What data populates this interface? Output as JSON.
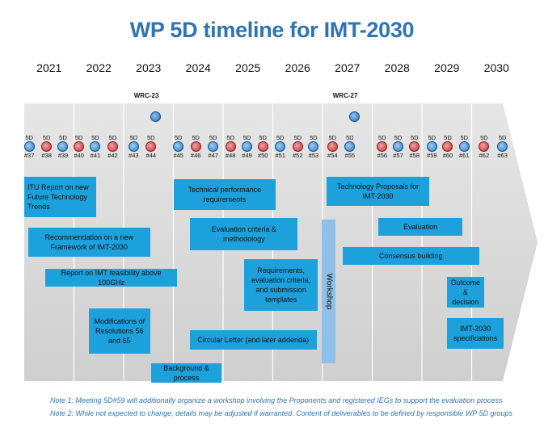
{
  "title": "WP 5D timeline for IMT-2030",
  "years": [
    "2021",
    "2022",
    "2023",
    "2024",
    "2025",
    "2026",
    "2027",
    "2028",
    "2029",
    "2030"
  ],
  "wrc": [
    {
      "label": "WRC-23",
      "year_index": 2
    },
    {
      "label": "WRC-27",
      "year_index": 6
    }
  ],
  "meetings": [
    {
      "label": "5D\n#37",
      "pos": 0.1
    },
    {
      "label": "5D\n#38",
      "pos": 0.45
    },
    {
      "label": "5D\n#39",
      "pos": 0.78
    },
    {
      "label": "5D\n#40",
      "pos": 1.1
    },
    {
      "label": "5D\n#41",
      "pos": 1.43
    },
    {
      "label": "5D\n#42",
      "pos": 1.78
    },
    {
      "label": "5D\n#43",
      "pos": 2.2
    },
    {
      "label": "5D\n#44",
      "pos": 2.55
    },
    {
      "label": "5D\n#45",
      "pos": 3.1
    },
    {
      "label": "5D\n#46",
      "pos": 3.45
    },
    {
      "label": "5D\n#47",
      "pos": 3.8
    },
    {
      "label": "5D\n#48",
      "pos": 4.15
    },
    {
      "label": "5D\n#49",
      "pos": 4.48
    },
    {
      "label": "5D\n#50",
      "pos": 4.8
    },
    {
      "label": "5D\n#51",
      "pos": 5.15
    },
    {
      "label": "5D\n#52",
      "pos": 5.5
    },
    {
      "label": "5D\n#53",
      "pos": 5.82
    },
    {
      "label": "5D\n#54",
      "pos": 6.2
    },
    {
      "label": "5D\n#55",
      "pos": 6.55
    },
    {
      "label": "5D\n#56",
      "pos": 7.2
    },
    {
      "label": "5D\n#57",
      "pos": 7.52
    },
    {
      "label": "5D\n#58",
      "pos": 7.85
    },
    {
      "label": "5D\n#59",
      "pos": 8.2
    },
    {
      "label": "5D\n#60",
      "pos": 8.52
    },
    {
      "label": "5D\n#61",
      "pos": 8.85
    },
    {
      "label": "5D\n#62",
      "pos": 9.25
    },
    {
      "label": "5D\n#63",
      "pos": 9.62
    }
  ],
  "deliverables": [
    {
      "text": "ITU Report on new Future Technology Trends",
      "start": 0.0,
      "end": 1.45,
      "row": 0,
      "align": "left"
    },
    {
      "text": "Recommendation on a new Framework of IMT-2030",
      "start": 0.08,
      "end": 2.53,
      "row": 1
    },
    {
      "text": "Report on IMT feasibility above 100GHz",
      "start": 0.43,
      "end": 3.07,
      "row": 2
    },
    {
      "text": "Modifications of Resolutions 56 and 65",
      "start": 1.3,
      "end": 2.53,
      "row": 3
    },
    {
      "text": "Background & process",
      "start": 2.55,
      "end": 3.97,
      "row": 5
    },
    {
      "text": "Technical performance requirements",
      "start": 3.0,
      "end": 5.06,
      "row": 0
    },
    {
      "text": "Evaluation criteria & methodology",
      "start": 3.34,
      "end": 5.5,
      "row": 1
    },
    {
      "text": "Requirements, evaluation criteria, and submission templates",
      "start": 4.43,
      "end": 5.9,
      "row": 2
    },
    {
      "text": "Circular Letter (and later addenda)",
      "start": 3.33,
      "end": 5.88,
      "row": 4
    },
    {
      "text": "Technology Proposals for IMT-2030",
      "start": 6.08,
      "end": 8.15,
      "row": 0
    },
    {
      "text": "Evaluation",
      "start": 7.12,
      "end": 8.82,
      "row": 1
    },
    {
      "text": "Consensus building",
      "start": 6.4,
      "end": 9.15,
      "row": 2
    },
    {
      "text": "Outcome & decision",
      "start": 8.5,
      "end": 9.25,
      "row": 3
    },
    {
      "text": "IMT-2030 specifications",
      "start": 8.5,
      "end": 9.65,
      "row": 4
    }
  ],
  "workshop": "Workshop",
  "notes": [
    "Note 1: Meeting 5D#59 will additionally organize a workshop involving the Proponents and registered IEGs to support the evaluation process",
    "Note 2: While not expected to change, details may be adjusted if warranted. Content of deliverables to be defined by responsible WP 5D groups"
  ],
  "colors": {
    "title": "#2e74b5",
    "deliverable": "#1da1dc",
    "workshop": "#8fc0e8",
    "band": "#d9d9d9",
    "note": "#2e74b5"
  }
}
